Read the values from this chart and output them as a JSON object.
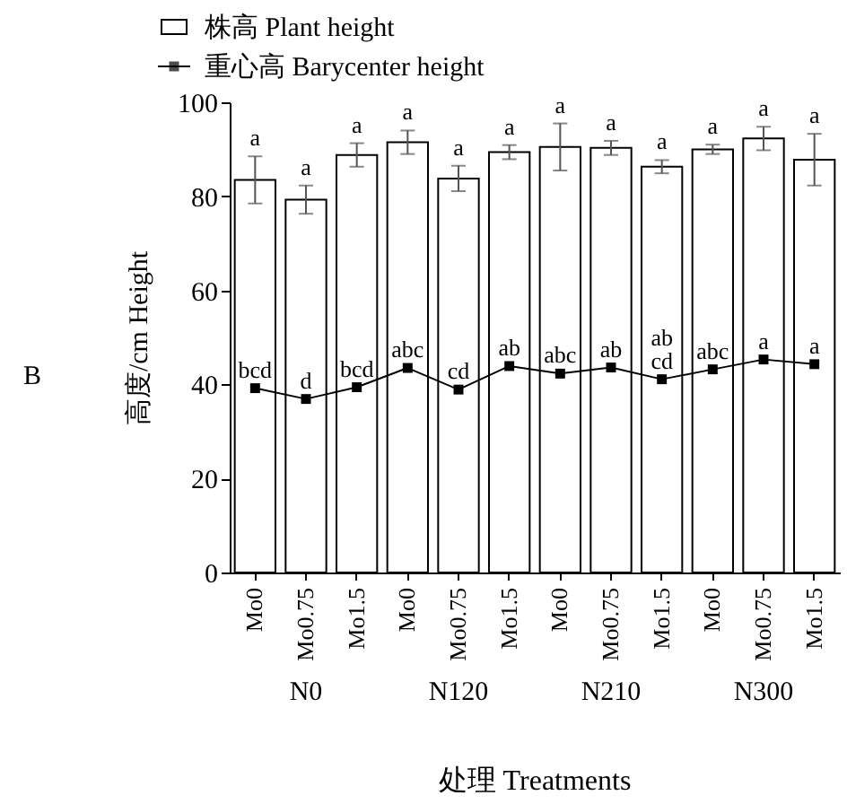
{
  "chart_data": {
    "type": "bar",
    "ylabel": "高度/cm Height",
    "xlabel": "处理 Treatments",
    "categories": [
      "Mo0",
      "Mo0.75",
      "Mo1.5",
      "Mo0",
      "Mo0.75",
      "Mo1.5",
      "Mo0",
      "Mo0.75",
      "Mo1.5",
      "Mo0",
      "Mo0.75",
      "Mo1.5"
    ],
    "series": [
      {
        "name": "株高 Plant height",
        "color": "#ffffff",
        "values": [
          83.5,
          79.3,
          88.8,
          91.5,
          83.8,
          89.4,
          90.5,
          90.3,
          86.3,
          90,
          92.3,
          87.8
        ],
        "errors": [
          5,
          3,
          2.5,
          2.5,
          2.7,
          1.5,
          5,
          1.5,
          1.4,
          1,
          2.5,
          5.5
        ],
        "value_labels": [
          "a",
          "a",
          "a",
          "a",
          "a",
          "a",
          "a",
          "a",
          "a",
          "a",
          "a",
          "a"
        ]
      },
      {
        "name": "重心高 Barycenter height",
        "type": "line",
        "color": "#000000",
        "marker": "square",
        "values": [
          39.2,
          36.9,
          39.4,
          43.5,
          38.9,
          43.9,
          42.3,
          43.6,
          41.1,
          43.2,
          45.3,
          44.3
        ],
        "value_labels": [
          "bcd",
          "d",
          "bcd",
          "abc",
          "cd",
          "ab",
          "abc",
          "ab",
          "ab\ncd",
          "abc",
          "a",
          "a"
        ]
      }
    ],
    "annotations": [
      "B",
      "N0",
      "N120",
      "N210",
      "N300"
    ],
    "ylim": [
      0,
      100
    ],
    "yticks": [
      0,
      20,
      40,
      60,
      80,
      100
    ],
    "grid": false,
    "legend": "top left"
  }
}
